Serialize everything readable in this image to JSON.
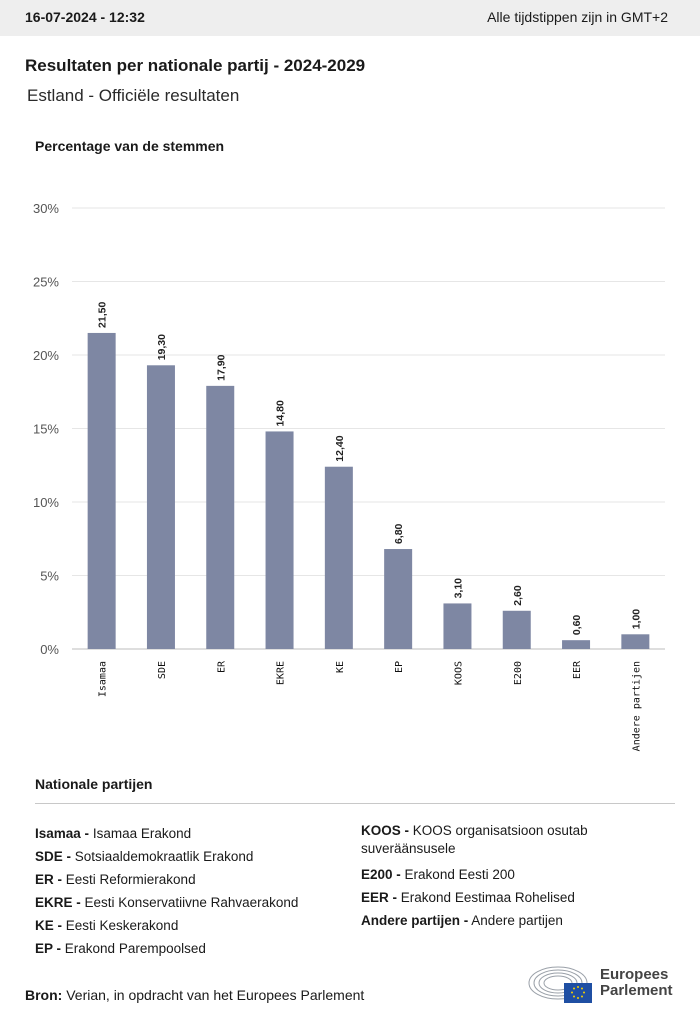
{
  "header": {
    "date": "16-07-2024 - 12:32",
    "timezone_note": "Alle tijdstippen zijn in GMT+2"
  },
  "title": "Resultaten per nationale partij - 2024-2029",
  "subtitle": "Estland - Officiële resultaten",
  "chart_data": {
    "type": "bar",
    "ylabel": "Percentage van de stemmen",
    "categories": [
      "Isamaa",
      "SDE",
      "ER",
      "EKRE",
      "KE",
      "EP",
      "KOOS",
      "E200",
      "EER",
      "Andere partijen"
    ],
    "values": [
      21.5,
      19.3,
      17.9,
      14.8,
      12.4,
      6.8,
      3.1,
      2.6,
      0.6,
      1.0
    ],
    "value_labels": [
      "21,50",
      "19,30",
      "17,90",
      "14,80",
      "12,40",
      "6,80",
      "3,10",
      "2,60",
      "0,60",
      "1,00"
    ],
    "yticks": [
      "0%",
      "5%",
      "10%",
      "15%",
      "20%",
      "25%",
      "30%"
    ],
    "ylim": [
      0,
      30
    ],
    "bar_color": "#7e87a3",
    "grid": true
  },
  "legend": {
    "title": "Nationale partijen",
    "left": [
      {
        "code": "Isamaa -",
        "name": "Isamaa Erakond"
      },
      {
        "code": "SDE -",
        "name": "Sotsiaaldemokraatlik Erakond"
      },
      {
        "code": "ER -",
        "name": "Eesti Reformierakond"
      },
      {
        "code": "EKRE -",
        "name": "Eesti Konservatiivne Rahvaerakond"
      },
      {
        "code": "KE -",
        "name": "Eesti Keskerakond"
      },
      {
        "code": "EP -",
        "name": "Erakond Parempoolsed"
      }
    ],
    "right": [
      {
        "code": "KOOS -",
        "name": "KOOS organisatsioon osutab suveräänsusele"
      },
      {
        "code": "E200 -",
        "name": "Erakond Eesti 200"
      },
      {
        "code": "EER -",
        "name": "Erakond Eestimaa Rohelised"
      },
      {
        "code": "Andere partijen -",
        "name": "Andere partijen"
      }
    ]
  },
  "source": {
    "label": "Bron:",
    "text": "Verian, in opdracht van het Europees Parlement"
  },
  "logo": {
    "line1": "Europees",
    "line2": "Parlement"
  }
}
